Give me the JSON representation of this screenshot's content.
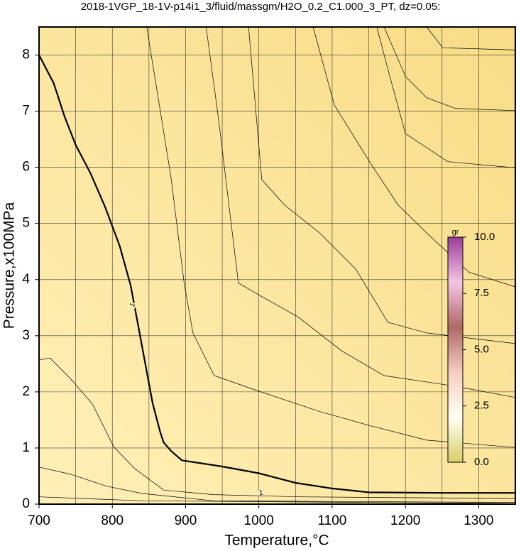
{
  "chart_data": {
    "type": "contour",
    "title": "2018-1VGP_18-1V-p14i1_3/fluid/massgm/H2O_0.2_C1.000_3_PT, dz=0.05:",
    "xlabel": "Temperature,°C",
    "ylabel": "Pressure,x100MPa",
    "xlim": [
      700,
      1350
    ],
    "ylim": [
      0,
      8.5
    ],
    "xticks": [
      700,
      800,
      900,
      1000,
      1100,
      1200,
      1300
    ],
    "xminor": [
      750,
      850,
      950,
      1050,
      1150,
      1250
    ],
    "yticks": [
      0,
      1,
      2,
      3,
      4,
      5,
      6,
      7,
      8
    ],
    "grid": true,
    "line_color": "#000000",
    "series": [
      {
        "level": 1,
        "linewidth": 2.2,
        "x": [
          700,
          720,
          735,
          750,
          770,
          790,
          810,
          825,
          835,
          845,
          855,
          865,
          870,
          880,
          895,
          950,
          1000,
          1050,
          1100,
          1150,
          1250,
          1350
        ],
        "values": [
          8.0,
          7.5,
          6.9,
          6.4,
          5.9,
          5.3,
          4.6,
          3.9,
          3.2,
          2.5,
          1.8,
          1.3,
          1.1,
          0.95,
          0.78,
          0.67,
          0.55,
          0.38,
          0.28,
          0.21,
          0.2,
          0.2
        ]
      },
      {
        "x": [
          847,
          880,
          898,
          910,
          939,
          996,
          1083,
          1151,
          1229,
          1350
        ],
        "values": [
          8.5,
          5.83,
          3.94,
          3.05,
          2.29,
          2.03,
          1.65,
          1.4,
          1.14,
          1.01
        ]
      },
      {
        "x": [
          928,
          945,
          972,
          1001,
          1054,
          1113,
          1171,
          1268,
          1350
        ],
        "values": [
          8.5,
          6.86,
          3.94,
          3.72,
          3.33,
          2.73,
          2.29,
          2.1,
          1.9
        ]
      },
      {
        "x": [
          986,
          1004,
          1035,
          1083,
          1132,
          1176,
          1229,
          1350
        ],
        "values": [
          8.5,
          5.78,
          5.33,
          4.83,
          4.19,
          3.24,
          3.05,
          2.86
        ]
      },
      {
        "x": [
          1074,
          1103,
          1151,
          1190,
          1229,
          1287,
          1350
        ],
        "values": [
          8.5,
          7.11,
          6.1,
          5.33,
          4.83,
          4.13,
          3.87
        ]
      },
      {
        "x": [
          1161,
          1176,
          1200,
          1258,
          1350
        ],
        "values": [
          8.5,
          7.75,
          6.6,
          6.1,
          5.99
        ]
      },
      {
        "x": [
          1171,
          1200,
          1229,
          1268,
          1350
        ],
        "values": [
          8.5,
          7.62,
          7.24,
          7.05,
          7.01
        ]
      },
      {
        "x": [
          1229,
          1251,
          1350
        ],
        "values": [
          8.5,
          8.13,
          8.09
        ]
      },
      {
        "x": [
          700,
          715,
          744,
          773,
          802,
          831,
          870,
          938,
          1054,
          1350
        ],
        "values": [
          2.57,
          2.6,
          2.22,
          1.78,
          1.02,
          0.63,
          0.25,
          0.17,
          0.13,
          0.1
        ]
      },
      {
        "x": [
          700,
          744,
          792,
          841,
          938,
          1350
        ],
        "values": [
          0.66,
          0.53,
          0.32,
          0.19,
          0.06,
          0.03
        ]
      },
      {
        "x": [
          700,
          841,
          1350
        ],
        "values": [
          0.13,
          0.06,
          0.01
        ]
      }
    ],
    "colorbar": {
      "label": "gr",
      "lim": [
        0,
        10
      ],
      "ticks": [
        {
          "value": 0,
          "label": "0.0"
        },
        {
          "value": 2.5,
          "label": "2.5"
        },
        {
          "value": 5,
          "label": "5.0"
        },
        {
          "value": 7.5,
          "label": "7.5"
        },
        {
          "value": 10,
          "label": "10.0"
        }
      ],
      "colors": [
        "#d8cf6a",
        "#fffff2",
        "#f3cfc0",
        "#b06868",
        "#f4c6e4",
        "#9a3c9a"
      ]
    }
  }
}
